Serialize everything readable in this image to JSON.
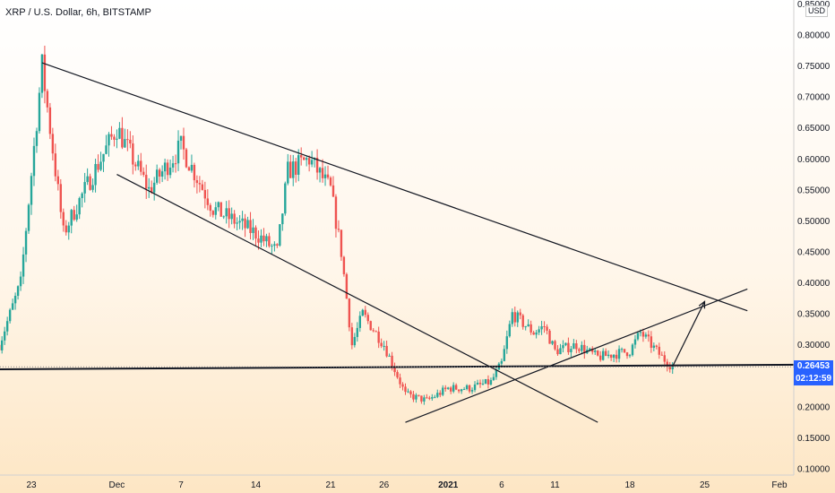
{
  "header": {
    "title": "XRP / U.S. Dollar, 6h, BITSTAMP",
    "unit": "USD"
  },
  "price_tags": {
    "last_price": "0.26453",
    "countdown": "02:12:59",
    "tag_color": "#2962ff"
  },
  "colors": {
    "up": "#26a69a",
    "down": "#ef5350",
    "trendline": "#131722"
  },
  "chart_data": {
    "type": "candlestick",
    "x_axis": {
      "tick_labels": [
        "23",
        "Dec",
        "7",
        "14",
        "21",
        "26",
        "2021",
        "6",
        "11",
        "18",
        "25",
        "Feb"
      ],
      "tick_dates": [
        "2020-11-23",
        "2020-12-01",
        "2020-12-07",
        "2020-12-14",
        "2020-12-21",
        "2020-12-26",
        "2021-01-01",
        "2021-01-06",
        "2021-01-11",
        "2021-01-18",
        "2021-01-25",
        "2021-02-01"
      ]
    },
    "y_axis": {
      "tick_labels": [
        "0.10000",
        "0.15000",
        "0.20000",
        "0.25000",
        "0.30000",
        "0.35000",
        "0.40000",
        "0.45000",
        "0.50000",
        "0.55000",
        "0.60000",
        "0.65000",
        "0.70000",
        "0.75000",
        "0.80000",
        "0.85000"
      ],
      "ylim": [
        0.1,
        0.85
      ]
    },
    "approx_close_path": [
      [
        "2020-11-20",
        0.3
      ],
      [
        "2020-11-22",
        0.4
      ],
      [
        "2020-11-24",
        0.75
      ],
      [
        "2020-11-26",
        0.48
      ],
      [
        "2020-11-28",
        0.55
      ],
      [
        "2020-12-01",
        0.65
      ],
      [
        "2020-12-04",
        0.55
      ],
      [
        "2020-12-07",
        0.62
      ],
      [
        "2020-12-10",
        0.52
      ],
      [
        "2020-12-14",
        0.48
      ],
      [
        "2020-12-16",
        0.45
      ],
      [
        "2020-12-17",
        0.58
      ],
      [
        "2020-12-19",
        0.6
      ],
      [
        "2020-12-21",
        0.55
      ],
      [
        "2020-12-22",
        0.45
      ],
      [
        "2020-12-23",
        0.3
      ],
      [
        "2020-12-24",
        0.35
      ],
      [
        "2020-12-26",
        0.3
      ],
      [
        "2020-12-28",
        0.22
      ],
      [
        "2020-12-30",
        0.21
      ],
      [
        "2021-01-01",
        0.23
      ],
      [
        "2021-01-03",
        0.23
      ],
      [
        "2021-01-05",
        0.24
      ],
      [
        "2021-01-06",
        0.27
      ],
      [
        "2021-01-07",
        0.35
      ],
      [
        "2021-01-09",
        0.32
      ],
      [
        "2021-01-10",
        0.33
      ],
      [
        "2021-01-11",
        0.29
      ],
      [
        "2021-01-13",
        0.3
      ],
      [
        "2021-01-15",
        0.28
      ],
      [
        "2021-01-18",
        0.29
      ],
      [
        "2021-01-19",
        0.32
      ],
      [
        "2021-01-21",
        0.28
      ],
      [
        "2021-01-22",
        0.2645
      ]
    ],
    "trendlines": [
      {
        "from": [
          "2020-11-24",
          0.755
        ],
        "to": [
          "2021-01-29",
          0.355
        ]
      },
      {
        "from": [
          "2020-12-01",
          0.575
        ],
        "to": [
          "2021-01-15",
          0.175
        ]
      },
      {
        "from": [
          "2020-12-28",
          0.175
        ],
        "to": [
          "2021-01-29",
          0.39
        ]
      },
      {
        "from": [
          "2020-11-15",
          0.26
        ],
        "to": [
          "2021-02-04",
          0.268
        ]
      }
    ],
    "projection_arrow": {
      "from": [
        "2021-01-22",
        0.265
      ],
      "to": [
        "2021-01-25",
        0.37
      ]
    },
    "last_price_line": 0.26453,
    "grid": false
  }
}
